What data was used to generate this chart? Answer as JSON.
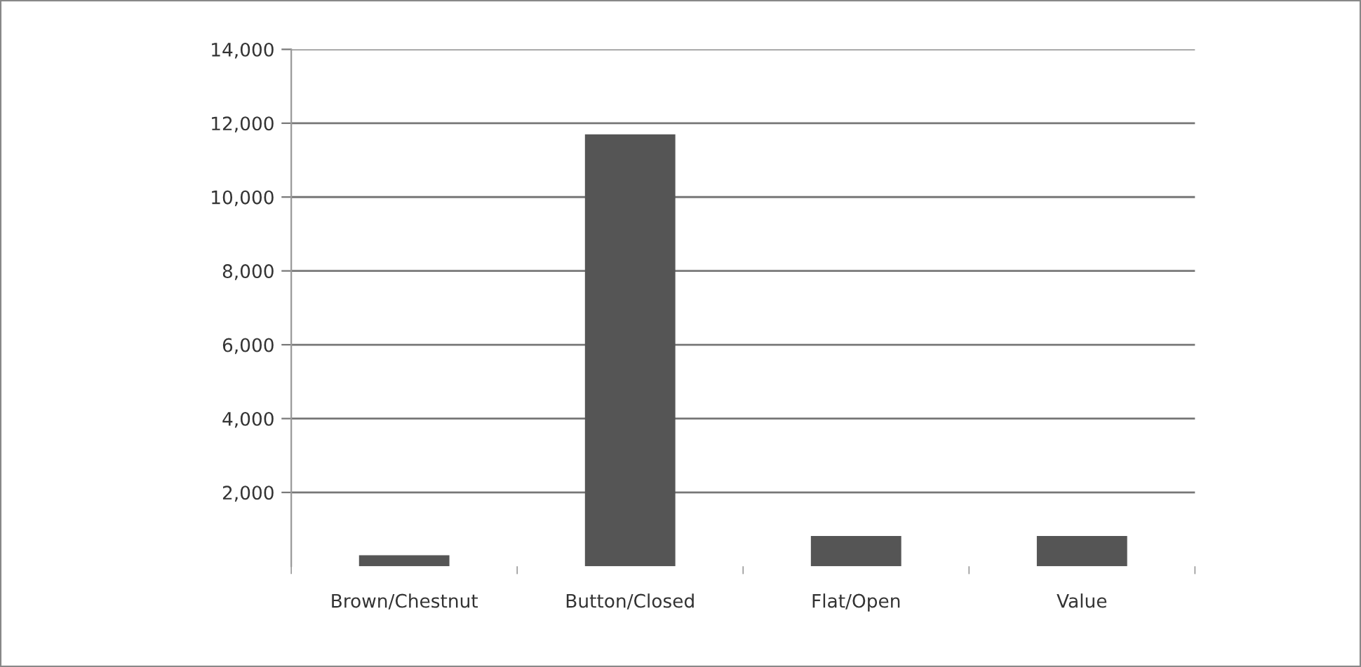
{
  "chart_data": {
    "type": "bar",
    "categories": [
      "Brown/Chestnut",
      "Button/Closed",
      "Flat/Open",
      "Value"
    ],
    "values": [
      300,
      11700,
      820,
      820
    ],
    "color": "#555555",
    "ylim": [
      0,
      14000
    ],
    "yticks": [
      {
        "value": 2000,
        "label": "2,000"
      },
      {
        "value": 4000,
        "label": "4,000"
      },
      {
        "value": 6000,
        "label": "6,000"
      },
      {
        "value": 8000,
        "label": "8,000"
      },
      {
        "value": 10000,
        "label": "10,000"
      },
      {
        "value": 12000,
        "label": "12,000"
      },
      {
        "value": 14000,
        "label": "14,000"
      }
    ],
    "grid": "y",
    "legend": false
  }
}
